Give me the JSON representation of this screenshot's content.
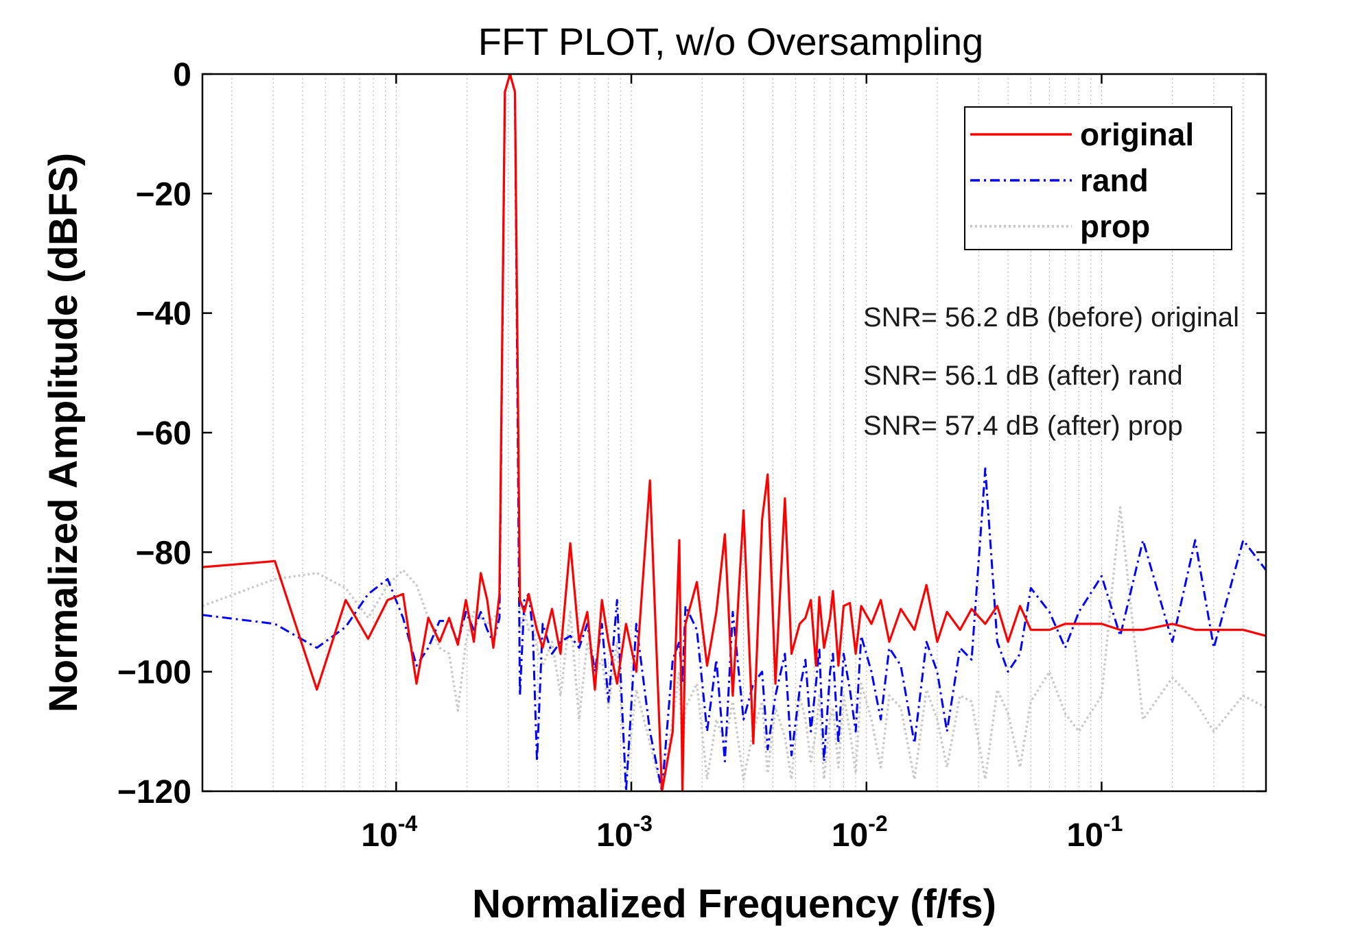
{
  "chart_data": {
    "type": "line",
    "title": "FFT PLOT, w/o Oversampling",
    "xlabel": "Normalized Frequency (f/fs)",
    "ylabel": "Normalized Amplitude (dBFS)",
    "xscale": "log",
    "xlim": [
      1.5e-05,
      0.5
    ],
    "ylim": [
      -120,
      0
    ],
    "grid": "x-minor",
    "yticks": [
      {
        "value": 0,
        "label": "0"
      },
      {
        "value": -20,
        "label": "−20"
      },
      {
        "value": -40,
        "label": "−40"
      },
      {
        "value": -60,
        "label": "−60"
      },
      {
        "value": -80,
        "label": "−80"
      },
      {
        "value": -100,
        "label": "−100"
      },
      {
        "value": -120,
        "label": "−120"
      }
    ],
    "xticks": [
      {
        "value": 0.0001,
        "base": "10",
        "exp": "-4"
      },
      {
        "value": 0.001,
        "base": "10",
        "exp": "-3"
      },
      {
        "value": 0.01,
        "base": "10",
        "exp": "-2"
      },
      {
        "value": 0.1,
        "base": "10",
        "exp": "-1"
      }
    ],
    "legend": {
      "position": "top-right",
      "entries": [
        {
          "label": "original",
          "color": "#ff0000",
          "style": "solid"
        },
        {
          "label": "rand",
          "color": "#0000ff",
          "style": "dashdot"
        },
        {
          "label": "prop",
          "color": "#c8c8c8",
          "style": "dotted"
        }
      ]
    },
    "annotations": [
      "SNR= 56.2 dB (before) original",
      "SNR= 56.1 dB (after) rand",
      "SNR= 57.4 dB (after) prop"
    ],
    "series": [
      {
        "name": "original",
        "color": "#ff0000",
        "style": "solid",
        "x": [
          1.5e-05,
          3.05e-05,
          4.6e-05,
          6.1e-05,
          7.6e-05,
          9.2e-05,
          0.000107,
          0.000122,
          0.000137,
          0.000153,
          0.000168,
          0.000183,
          0.000198,
          0.000214,
          0.000229,
          0.000244,
          0.000259,
          0.000275,
          0.00029,
          0.000305,
          0.00032,
          0.000336,
          0.000351,
          0.000366,
          0.000381,
          0.000397,
          0.00042,
          0.00046,
          0.0005,
          0.00055,
          0.0006,
          0.00065,
          0.0007,
          0.00075,
          0.0008,
          0.00087,
          0.00095,
          0.00105,
          0.0012,
          0.00135,
          0.0015,
          0.0016,
          0.00165,
          0.0017,
          0.0019,
          0.0021,
          0.0023,
          0.0025,
          0.0027,
          0.003,
          0.0033,
          0.0036,
          0.0038,
          0.0041,
          0.0045,
          0.0048,
          0.0052,
          0.0055,
          0.0058,
          0.0061,
          0.0063,
          0.0066,
          0.007,
          0.0072,
          0.0076,
          0.008,
          0.0085,
          0.009,
          0.0095,
          0.0105,
          0.0115,
          0.0125,
          0.014,
          0.016,
          0.018,
          0.02,
          0.022,
          0.025,
          0.028,
          0.032,
          0.036,
          0.04,
          0.045,
          0.05,
          0.06,
          0.07,
          0.08,
          0.1,
          0.12,
          0.15,
          0.2,
          0.25,
          0.3,
          0.4,
          0.5
        ],
        "y": [
          -82.5,
          -81.5,
          -103,
          -88,
          -94.5,
          -88,
          -87,
          -102,
          -91,
          -95,
          -91,
          -95.5,
          -88,
          -95,
          -83.5,
          -88,
          -96,
          -87,
          -3,
          0,
          -3,
          -88,
          -90,
          -87,
          -90,
          -93,
          -96,
          -89.5,
          -97,
          -78.5,
          -95,
          -90,
          -103,
          -88,
          -95,
          -102,
          -92,
          -100,
          -68,
          -120,
          -110,
          -78,
          -120,
          -92,
          -85,
          -99,
          -90,
          -77,
          -104,
          -73,
          -112,
          -74.5,
          -67,
          -102,
          -71,
          -97,
          -92,
          -91,
          -88,
          -99,
          -87.5,
          -96,
          -91,
          -86.5,
          -99,
          -89,
          -88.5,
          -97,
          -89,
          -92,
          -88,
          -95,
          -89.5,
          -93,
          -85.5,
          -95,
          -90,
          -93,
          -89.5,
          -92,
          -89,
          -95,
          -89,
          -93,
          -93,
          -92,
          -92,
          -92,
          -93,
          -93,
          -92,
          -93,
          -93,
          -93,
          -94
        ]
      },
      {
        "name": "rand",
        "color": "#0000ff",
        "style": "dashdot",
        "x": [
          1.5e-05,
          3.05e-05,
          4.6e-05,
          6.1e-05,
          7.6e-05,
          9.2e-05,
          0.000107,
          0.000122,
          0.000137,
          0.000153,
          0.000168,
          0.000183,
          0.000198,
          0.000214,
          0.000229,
          0.000244,
          0.000259,
          0.000275,
          0.00029,
          0.000305,
          0.00032,
          0.000336,
          0.000351,
          0.000366,
          0.000381,
          0.000397,
          0.00042,
          0.00046,
          0.0005,
          0.00055,
          0.0006,
          0.00065,
          0.0007,
          0.00075,
          0.0008,
          0.00087,
          0.00095,
          0.00105,
          0.0012,
          0.00135,
          0.0015,
          0.0016,
          0.00165,
          0.0017,
          0.0019,
          0.0021,
          0.0023,
          0.0025,
          0.0027,
          0.003,
          0.0033,
          0.0036,
          0.0038,
          0.0041,
          0.0045,
          0.0048,
          0.0052,
          0.0055,
          0.0058,
          0.0061,
          0.0063,
          0.0066,
          0.007,
          0.0072,
          0.0076,
          0.008,
          0.0085,
          0.009,
          0.0095,
          0.0105,
          0.0115,
          0.0125,
          0.014,
          0.016,
          0.018,
          0.02,
          0.022,
          0.025,
          0.028,
          0.032,
          0.036,
          0.04,
          0.045,
          0.05,
          0.06,
          0.07,
          0.08,
          0.1,
          0.12,
          0.15,
          0.2,
          0.25,
          0.3,
          0.4,
          0.5
        ],
        "y": [
          -90.5,
          -92,
          -96,
          -92.5,
          -87,
          -84.5,
          -91,
          -99,
          -96,
          -91.5,
          -91.5,
          -95,
          -90,
          -93,
          -90,
          -93,
          -95,
          -91,
          -3,
          0,
          -3,
          -104,
          -88,
          -87,
          -93,
          -115,
          -92,
          -97,
          -95,
          -94,
          -96,
          -92,
          -100,
          -92,
          -105,
          -88,
          -120,
          -92,
          -110,
          -120,
          -98,
          -95,
          -102,
          -89,
          -93,
          -110,
          -98,
          -115,
          -90,
          -108,
          -102,
          -100,
          -113,
          -104,
          -97,
          -114,
          -103,
          -98,
          -110,
          -102,
          -96,
          -115,
          -100,
          -97,
          -112,
          -97,
          -103,
          -110,
          -94,
          -100,
          -108,
          -96,
          -99,
          -112,
          -95,
          -100,
          -110,
          -96,
          -98,
          -66,
          -95,
          -100,
          -97,
          -86,
          -90,
          -96,
          -90,
          -84,
          -94,
          -78,
          -95,
          -78,
          -96,
          -78,
          -83
        ]
      },
      {
        "name": "prop",
        "color": "#c8c8c8",
        "style": "dotted",
        "x": [
          1.5e-05,
          3.05e-05,
          4.6e-05,
          6.1e-05,
          7.6e-05,
          9.2e-05,
          0.000107,
          0.000122,
          0.000137,
          0.000153,
          0.000168,
          0.000183,
          0.000198,
          0.000214,
          0.000229,
          0.000244,
          0.000259,
          0.000275,
          0.00029,
          0.000305,
          0.00032,
          0.000336,
          0.000351,
          0.000366,
          0.000381,
          0.000397,
          0.00042,
          0.00046,
          0.0005,
          0.00055,
          0.0006,
          0.00065,
          0.0007,
          0.00075,
          0.0008,
          0.00087,
          0.00095,
          0.00105,
          0.0012,
          0.00135,
          0.0015,
          0.0016,
          0.00165,
          0.0017,
          0.0019,
          0.0021,
          0.0023,
          0.0025,
          0.0027,
          0.003,
          0.0033,
          0.0036,
          0.0038,
          0.0041,
          0.0045,
          0.0048,
          0.0052,
          0.0055,
          0.0058,
          0.0061,
          0.0063,
          0.0066,
          0.007,
          0.0072,
          0.0076,
          0.008,
          0.0085,
          0.009,
          0.0095,
          0.0105,
          0.0115,
          0.0125,
          0.014,
          0.016,
          0.018,
          0.02,
          0.022,
          0.025,
          0.028,
          0.032,
          0.036,
          0.04,
          0.045,
          0.05,
          0.06,
          0.07,
          0.08,
          0.1,
          0.12,
          0.15,
          0.2,
          0.25,
          0.3,
          0.4,
          0.5
        ],
        "y": [
          -89,
          -84.5,
          -83.5,
          -86,
          -91,
          -85.5,
          -83,
          -85.5,
          -91,
          -96,
          -97,
          -106.5,
          -95,
          -90,
          -91,
          -92,
          -91,
          -90,
          -3,
          0,
          -3,
          -93,
          -90,
          -93,
          -92,
          -96,
          -99,
          -95,
          -104,
          -90,
          -108,
          -95,
          -100,
          -98,
          -106,
          -95,
          -118,
          -103,
          -112,
          -120,
          -108,
          -100,
          -115,
          -106,
          -102,
          -118,
          -108,
          -112,
          -105,
          -118,
          -110,
          -105,
          -117,
          -106,
          -111,
          -118,
          -104,
          -108,
          -115,
          -110,
          -104,
          -118,
          -108,
          -106,
          -116,
          -104,
          -110,
          -117,
          -102,
          -108,
          -116,
          -104,
          -106,
          -118,
          -103,
          -108,
          -116,
          -104,
          -105,
          -118,
          -103,
          -107,
          -116,
          -105,
          -100,
          -107,
          -110,
          -104,
          -72.5,
          -108,
          -101,
          -105,
          -110,
          -104,
          -106
        ]
      }
    ]
  }
}
